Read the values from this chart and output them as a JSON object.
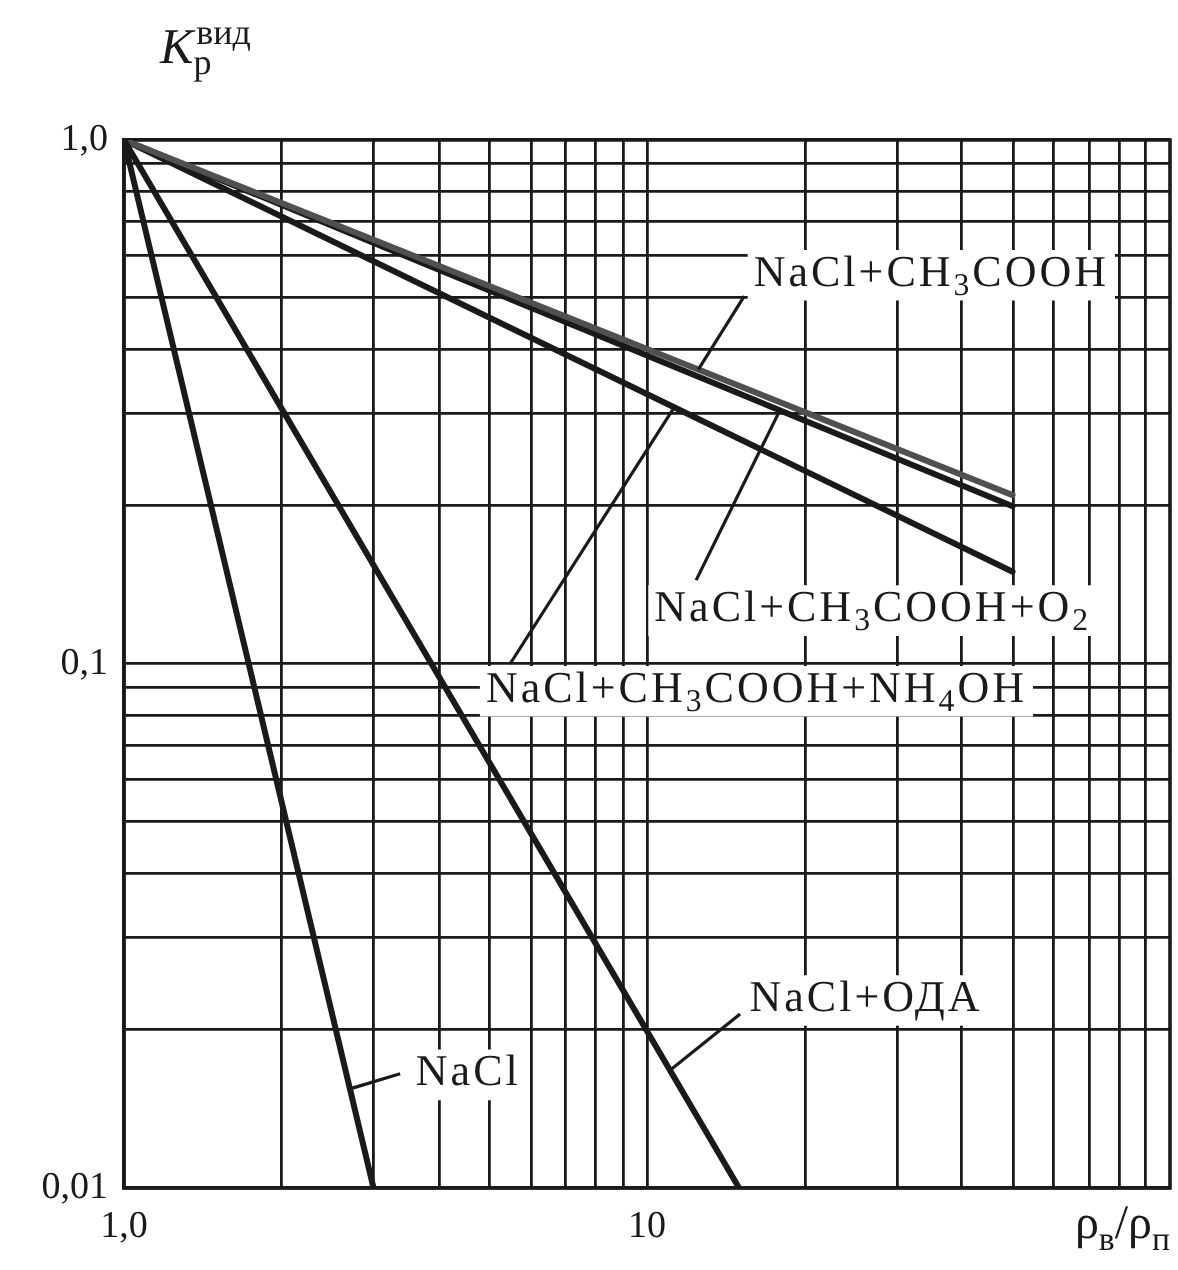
{
  "chart_data": {
    "type": "line",
    "xlabel": "ρ$_{в}$/ρ$_{п}$",
    "ylabel": "K$_{р}$$^{вид}$",
    "series": [
      {
        "name": "NaCl",
        "color": "#1a1a1a",
        "x": [
          1,
          3
        ],
        "values": [
          1,
          0.01
        ]
      },
      {
        "name": "NaCl+ОДА",
        "color": "#1a1a1a",
        "x": [
          1,
          15
        ],
        "values": [
          1,
          0.01
        ]
      },
      {
        "name": "NaCl+CH$_{3}$COOH",
        "color": "#505050",
        "x": [
          1,
          50
        ],
        "values": [
          1,
          0.21
        ]
      },
      {
        "name": "NaCl+CH$_{3}$COOH+O$_{2}$",
        "color": "#1a1a1a",
        "x": [
          1,
          50
        ],
        "values": [
          1,
          0.2
        ]
      },
      {
        "name": "NaCl+CH$_{3}$COOH+NH$_{4}$OH",
        "color": "#1a1a1a",
        "x": [
          1,
          50
        ],
        "values": [
          1,
          0.15
        ]
      }
    ],
    "xlim": [
      1,
      100
    ],
    "ylim": [
      0.01,
      1
    ],
    "xticks": [
      {
        "value": 1,
        "label": "1,0"
      },
      {
        "value": 2,
        "label": null
      },
      {
        "value": 3,
        "label": null
      },
      {
        "value": 4,
        "label": null
      },
      {
        "value": 5,
        "label": null
      },
      {
        "value": 6,
        "label": null
      },
      {
        "value": 7,
        "label": null
      },
      {
        "value": 8,
        "label": null
      },
      {
        "value": 9,
        "label": null
      },
      {
        "value": 10,
        "label": "10"
      },
      {
        "value": 20,
        "label": null
      },
      {
        "value": 30,
        "label": null
      },
      {
        "value": 40,
        "label": null
      },
      {
        "value": 50,
        "label": null
      },
      {
        "value": 60,
        "label": null
      },
      {
        "value": 70,
        "label": null
      },
      {
        "value": 80,
        "label": null
      },
      {
        "value": 90,
        "label": null
      }
    ],
    "yticks": [
      {
        "value": 0.01,
        "label": "0,01"
      },
      {
        "value": 0.02,
        "label": null
      },
      {
        "value": 0.03,
        "label": null
      },
      {
        "value": 0.04,
        "label": null
      },
      {
        "value": 0.05,
        "label": null
      },
      {
        "value": 0.06,
        "label": null
      },
      {
        "value": 0.07,
        "label": null
      },
      {
        "value": 0.08,
        "label": null
      },
      {
        "value": 0.09,
        "label": null
      },
      {
        "value": 0.1,
        "label": "0,1"
      },
      {
        "value": 0.2,
        "label": null
      },
      {
        "value": 0.3,
        "label": null
      },
      {
        "value": 0.4,
        "label": null
      },
      {
        "value": 0.5,
        "label": null
      },
      {
        "value": 0.6,
        "label": null
      },
      {
        "value": 0.7,
        "label": null
      },
      {
        "value": 0.8,
        "label": null
      },
      {
        "value": 0.9,
        "label": null
      },
      {
        "value": 1,
        "label": "1,0"
      }
    ],
    "log": "xy",
    "grid": true
  }
}
